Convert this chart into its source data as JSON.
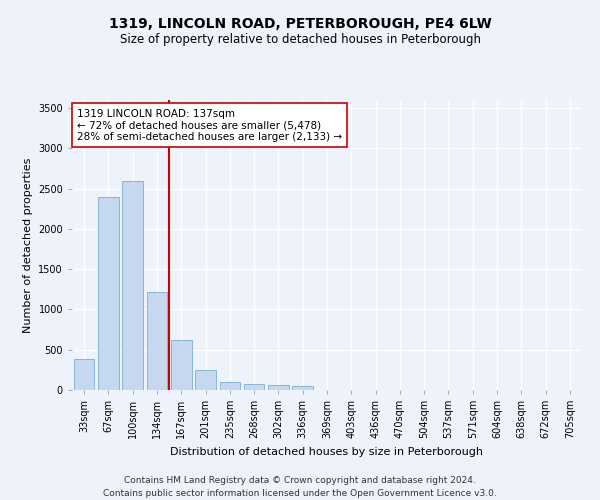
{
  "title": "1319, LINCOLN ROAD, PETERBOROUGH, PE4 6LW",
  "subtitle": "Size of property relative to detached houses in Peterborough",
  "xlabel": "Distribution of detached houses by size in Peterborough",
  "ylabel": "Number of detached properties",
  "categories": [
    "33sqm",
    "67sqm",
    "100sqm",
    "134sqm",
    "167sqm",
    "201sqm",
    "235sqm",
    "268sqm",
    "302sqm",
    "336sqm",
    "369sqm",
    "403sqm",
    "436sqm",
    "470sqm",
    "504sqm",
    "537sqm",
    "571sqm",
    "604sqm",
    "638sqm",
    "672sqm",
    "705sqm"
  ],
  "values": [
    390,
    2400,
    2600,
    1220,
    620,
    250,
    100,
    70,
    60,
    50,
    0,
    0,
    0,
    0,
    0,
    0,
    0,
    0,
    0,
    0,
    0
  ],
  "bar_color": "#c5d8f0",
  "bar_edge_color": "#7bafd4",
  "vline_x_index": 3,
  "vline_color": "#cc0000",
  "annotation_text": "1319 LINCOLN ROAD: 137sqm\n← 72% of detached houses are smaller (5,478)\n28% of semi-detached houses are larger (2,133) →",
  "annotation_box_color": "#ffffff",
  "annotation_box_edge_color": "#cc0000",
  "ylim": [
    0,
    3600
  ],
  "yticks": [
    0,
    500,
    1000,
    1500,
    2000,
    2500,
    3000,
    3500
  ],
  "footer": "Contains HM Land Registry data © Crown copyright and database right 2024.\nContains public sector information licensed under the Open Government Licence v3.0.",
  "bg_color": "#eef2fa",
  "plot_bg_color": "#eef2fa",
  "grid_color": "#ffffff",
  "title_fontsize": 10,
  "subtitle_fontsize": 8.5,
  "axis_label_fontsize": 8,
  "tick_fontsize": 7,
  "footer_fontsize": 6.5,
  "annotation_fontsize": 7.5
}
